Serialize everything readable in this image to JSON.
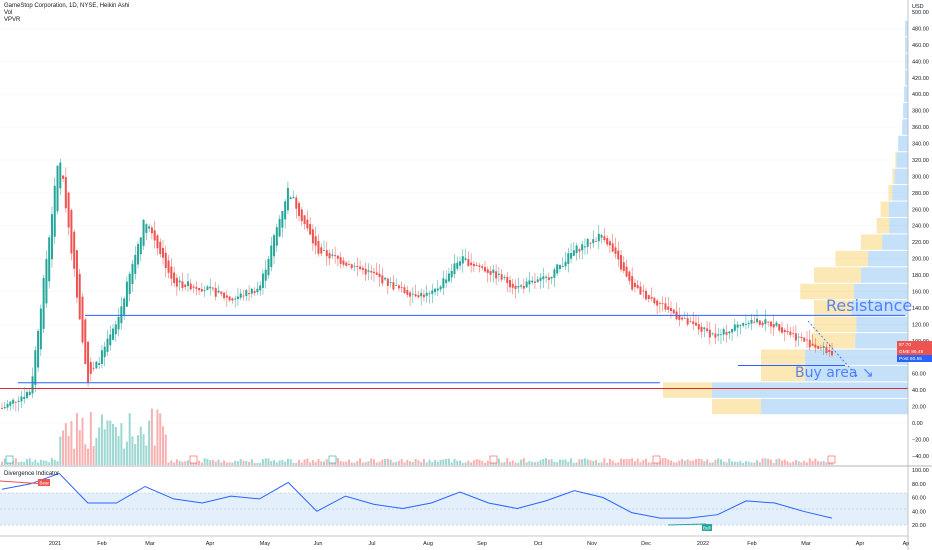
{
  "header": {
    "symbol_line": "GameStop Corporation, 1D, NYSE, Heikin Ashi",
    "vol_label": "Vol",
    "vpvr_label": "VPVR"
  },
  "annotations": {
    "resistance": "Resistance",
    "buy_area": "Buy area ↘"
  },
  "indicator": {
    "title": "Divergence Indicator",
    "bear_label": "Bear",
    "bull_label": "Bull",
    "scale": [
      "100.00",
      "80.00",
      "60.00",
      "40.00",
      "20.00"
    ]
  },
  "price_axis": {
    "unit": "USD",
    "ticks": [
      "500.00",
      "480.00",
      "460.00",
      "440.00",
      "420.00",
      "400.00",
      "380.00",
      "360.00",
      "340.00",
      "320.00",
      "300.00",
      "280.00",
      "260.00",
      "240.00",
      "220.00",
      "200.00",
      "180.00",
      "160.00",
      "140.00",
      "120.00",
      "100.00",
      "80.00",
      "60.00",
      "40.00",
      "20.00",
      "0.00",
      "−20.00",
      "−40.00"
    ]
  },
  "price_tags": [
    {
      "text": "87.70",
      "color": "#ef5350"
    },
    {
      "text": "GME 86.46",
      "color": "#ef5350"
    },
    {
      "text": "Post 80.55",
      "color": "#2962ff"
    }
  ],
  "time_axis": [
    "2021",
    "Feb",
    "Mar",
    "Apr",
    "May",
    "Jun",
    "Jul",
    "Aug",
    "Sep",
    "Oct",
    "Nov",
    "Dec",
    "2022",
    "Feb",
    "Mar",
    "Apr",
    "Ap"
  ],
  "colors": {
    "up": "#26a69a",
    "down": "#ef5350",
    "vp_blue": "#5aa8f0",
    "vp_yellow": "#f7cd5c",
    "line": "#2962ff"
  },
  "chart_data": {
    "type": "line",
    "title": "GameStop Corporation, 1D, NYSE, Heikin Ashi",
    "x": [
      "2021-01",
      "2021-01b",
      "2021-02",
      "2021-02b",
      "2021-03",
      "2021-03b",
      "2021-04",
      "2021-04b",
      "2021-05",
      "2021-05b",
      "2021-06",
      "2021-06b",
      "2021-07",
      "2021-07b",
      "2021-08",
      "2021-08b",
      "2021-09",
      "2021-09b",
      "2021-10",
      "2021-10b",
      "2021-11",
      "2021-11b",
      "2021-12",
      "2021-12b",
      "2022-01",
      "2022-01b",
      "2022-02",
      "2022-02b",
      "2022-03",
      "2022-03b"
    ],
    "series": [
      {
        "values": [
          18,
          40,
          330,
          50,
          120,
          250,
          170,
          165,
          150,
          165,
          285,
          210,
          195,
          180,
          160,
          155,
          200,
          185,
          165,
          175,
          210,
          230,
          165,
          145,
          120,
          105,
          125,
          120,
          100,
          85
        ]
      }
    ],
    "ylim": [
      -45,
      500
    ],
    "horizontal_lines": [
      {
        "value": 131,
        "color": "#2962ff"
      },
      {
        "value": 49,
        "color": "#2962ff"
      },
      {
        "value": 42,
        "color": "#d32f2f"
      },
      {
        "value": 70,
        "color": "#2962ff"
      }
    ],
    "volume_profile": [
      {
        "price": 480,
        "total": 3,
        "up_share": 1
      },
      {
        "price": 460,
        "total": 3,
        "up_share": 1
      },
      {
        "price": 440,
        "total": 3,
        "up_share": 1
      },
      {
        "price": 420,
        "total": 3,
        "up_share": 1
      },
      {
        "price": 400,
        "total": 4,
        "up_share": 1
      },
      {
        "price": 380,
        "total": 5,
        "up_share": 1
      },
      {
        "price": 360,
        "total": 6,
        "up_share": 1
      },
      {
        "price": 340,
        "total": 10,
        "up_share": 1
      },
      {
        "price": 320,
        "total": 13,
        "up_share": 0.9
      },
      {
        "price": 300,
        "total": 16,
        "up_share": 0.85
      },
      {
        "price": 280,
        "total": 20,
        "up_share": 0.8
      },
      {
        "price": 260,
        "total": 28,
        "up_share": 0.7
      },
      {
        "price": 240,
        "total": 32,
        "up_share": 0.6
      },
      {
        "price": 220,
        "total": 48,
        "up_share": 0.55
      },
      {
        "price": 200,
        "total": 74,
        "up_share": 0.55
      },
      {
        "price": 180,
        "total": 96,
        "up_share": 0.5
      },
      {
        "price": 160,
        "total": 110,
        "up_share": 0.5
      },
      {
        "price": 140,
        "total": 96,
        "up_share": 0.6
      },
      {
        "price": 120,
        "total": 96,
        "up_share": 0.55
      },
      {
        "price": 100,
        "total": 98,
        "up_share": 0.55
      },
      {
        "price": 80,
        "total": 150,
        "up_share": 0.7
      },
      {
        "price": 60,
        "total": 150,
        "up_share": 0.7
      },
      {
        "price": 40,
        "total": 250,
        "up_share": 0.8
      },
      {
        "price": 20,
        "total": 200,
        "up_share": 0.75
      }
    ],
    "oscillator": [
      72,
      80,
      95,
      52,
      52,
      76,
      58,
      52,
      62,
      58,
      82,
      40,
      62,
      50,
      44,
      52,
      68,
      52,
      44,
      55,
      70,
      60,
      38,
      30,
      30,
      35,
      55,
      52,
      40,
      30
    ]
  }
}
